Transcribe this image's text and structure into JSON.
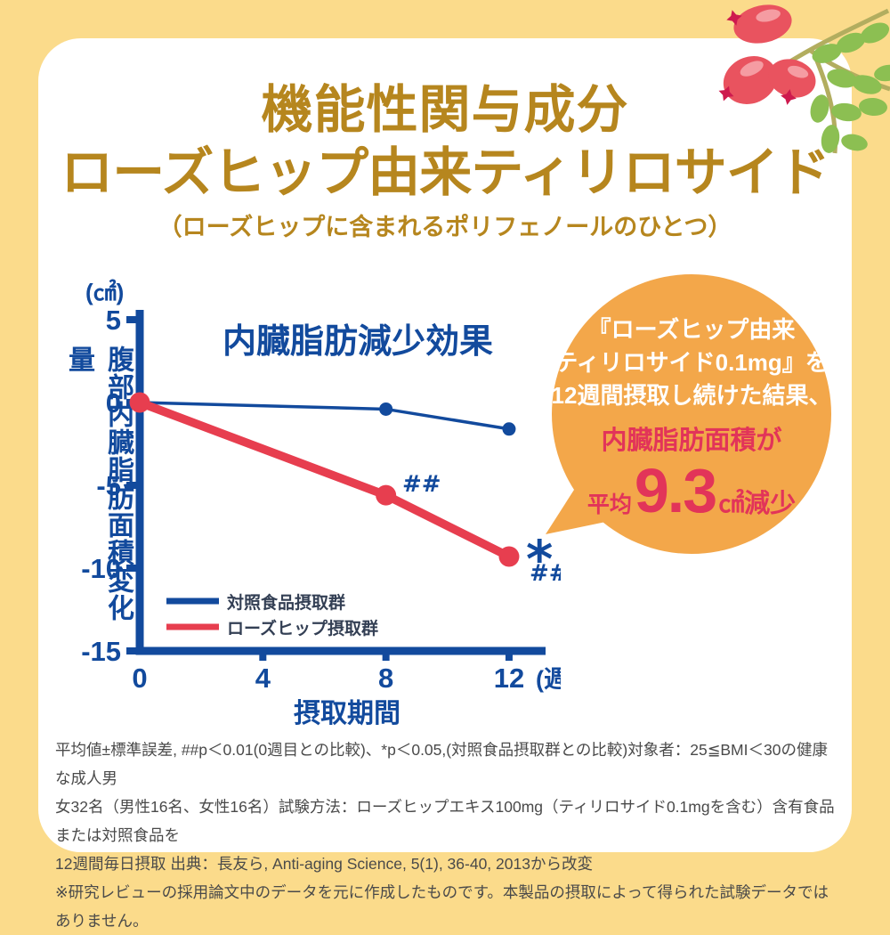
{
  "colors": {
    "background_yellow": "#FBDB8B",
    "card_white": "#FFFFFF",
    "title_gold": "#B6861E",
    "chart_blue": "#124A9D",
    "line_red": "#E73E4F",
    "bubble_orange": "#F3A74A",
    "bubble_red": "#E23459",
    "leaf_green": "#8CBF52",
    "berry_red": "#E9535F",
    "footnote_gray": "#4A4A4A"
  },
  "header": {
    "title_line1": "機能性関与成分",
    "title_line2": "ローズヒップ由来ティリロサイド",
    "subtitle": "（ローズヒップに含まれるポリフェノールのひとつ）"
  },
  "chart_data": {
    "type": "line",
    "title": "内臓脂肪減少効果",
    "xlabel": "摂取期間",
    "x_unit_label": "(週)",
    "ylabel": "腹部内臓脂肪面積変化量",
    "y_unit_label": "(㎠)",
    "x": [
      0,
      8,
      12
    ],
    "x_ticks": [
      0,
      4,
      8,
      12
    ],
    "y_ticks": [
      5,
      0,
      -5,
      -10,
      -15
    ],
    "ylim": [
      -15,
      5
    ],
    "xlim": [
      0,
      13.2
    ],
    "grid": false,
    "legend_position": "inside-bottom-left",
    "series": [
      {
        "name": "対照食品摂取群",
        "color": "#124A9D",
        "values": [
          0,
          -0.4,
          -1.6
        ]
      },
      {
        "name": "ローズヒップ摂取群",
        "color": "#E73E4F",
        "values": [
          0,
          -5.6,
          -9.3
        ]
      }
    ],
    "annotations": [
      {
        "text": "##",
        "at": "rosehip-week8",
        "meaning": "p<0.01 vs week0"
      },
      {
        "text": "*",
        "at": "rosehip-week12",
        "meaning": "p<0.05 vs control"
      },
      {
        "text": "##",
        "at": "rosehip-week12",
        "meaning": "p<0.01 vs week0"
      }
    ]
  },
  "bubble": {
    "line1": "『ローズヒップ由来",
    "line2": "ティリロサイド0.1mg』を",
    "line3": "12週間摂取し続けた結果、",
    "highlight": "内臓脂肪面積が",
    "avg_label": "平均",
    "avg_value": "9.3",
    "avg_unit": "㎠減少"
  },
  "footnote": {
    "lines": [
      "平均値±標準誤差, ##p＜0.01(0週目との比較)、*p＜0.05,(対照食品摂取群との比較)対象者：25≦BMI＜30の健康な成人男",
      "女32名（男性16名、女性16名）試験方法：ローズヒップエキス100mg（ティリロサイド0.1mgを含む）含有食品または対照食品を",
      "12週間毎日摂取 出典：長友ら, Anti-aging Science, 5(1), 36-40, 2013から改変",
      "※研究レビューの採用論文中のデータを元に作成したものです。本製品の摂取によって得られた試験データではありません。"
    ]
  }
}
